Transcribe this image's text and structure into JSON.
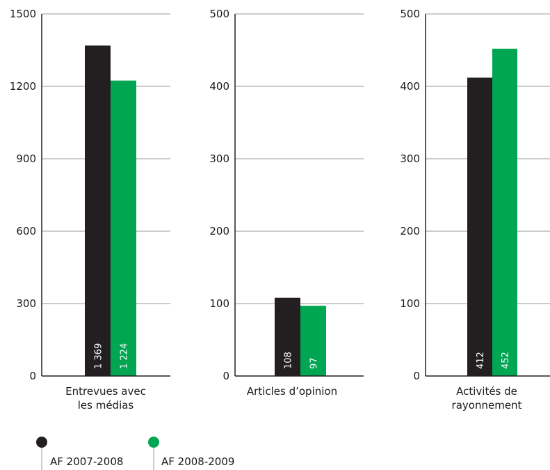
{
  "colors": {
    "series1": "#231f20",
    "series2": "#00a651",
    "grid": "#9a9a9a",
    "axis": "#231f20"
  },
  "legend": [
    {
      "label": "AF 2007-2008",
      "color": "#231f20"
    },
    {
      "label": "AF 2008-2009",
      "color": "#00a651"
    }
  ],
  "chart_data": [
    {
      "type": "bar",
      "category_lines": [
        "Entrevues avec",
        "les médias"
      ],
      "ylim": [
        0,
        1500
      ],
      "yticks": [
        0,
        300,
        600,
        900,
        1200,
        1500
      ],
      "series": [
        {
          "name": "AF 2007-2008",
          "value": 1369,
          "display": "1 369"
        },
        {
          "name": "AF 2008-2009",
          "value": 1224,
          "display": "1 224"
        }
      ]
    },
    {
      "type": "bar",
      "category_lines": [
        "Articles d’opinion"
      ],
      "ylim": [
        0,
        500
      ],
      "yticks": [
        0,
        100,
        200,
        300,
        400,
        500
      ],
      "series": [
        {
          "name": "AF 2007-2008",
          "value": 108,
          "display": "108"
        },
        {
          "name": "AF 2008-2009",
          "value": 97,
          "display": "97"
        }
      ]
    },
    {
      "type": "bar",
      "category_lines": [
        "Activités de",
        "rayonnement"
      ],
      "ylim": [
        0,
        500
      ],
      "yticks": [
        0,
        100,
        200,
        300,
        400,
        500
      ],
      "series": [
        {
          "name": "AF 2007-2008",
          "value": 412,
          "display": "412"
        },
        {
          "name": "AF 2008-2009",
          "value": 452,
          "display": "452"
        }
      ]
    }
  ]
}
